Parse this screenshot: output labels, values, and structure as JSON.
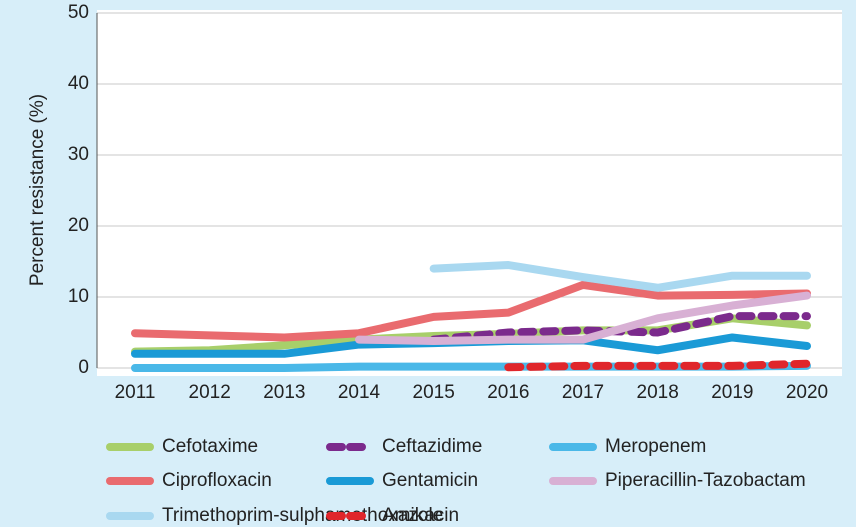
{
  "chart_data": {
    "type": "line",
    "y_label": "Percent resistance (%)",
    "categories": [
      "2011",
      "2012",
      "2013",
      "2014",
      "2015",
      "2016",
      "2017",
      "2018",
      "2019",
      "2020"
    ],
    "ylim": [
      0,
      50
    ],
    "yticks": [
      0,
      10,
      20,
      30,
      40,
      50
    ],
    "grid": true,
    "series": [
      {
        "name": "Cefotaxime",
        "color": "#a8cf6a",
        "dashed": false,
        "values": [
          2.3,
          2.5,
          3.2,
          4,
          4.5,
          4.8,
          5.3,
          5.3,
          7,
          6
        ]
      },
      {
        "name": "Ceftazidime",
        "color": "#7b2a8c",
        "dashed": true,
        "values": [
          null,
          null,
          null,
          null,
          4,
          5,
          5.3,
          5,
          7.3,
          7.3
        ]
      },
      {
        "name": "Meropenem",
        "color": "#4ab8e8",
        "dashed": false,
        "values": [
          0,
          0,
          0,
          0.2,
          0.2,
          0.2,
          0.2,
          0.2,
          0.2,
          0.3
        ]
      },
      {
        "name": "Ciprofloxacin",
        "color": "#e96b6f",
        "dashed": false,
        "values": [
          4.9,
          4.6,
          4.3,
          4.9,
          7.2,
          7.8,
          11.7,
          10.2,
          10.3,
          10.5
        ]
      },
      {
        "name": "Gentamicin",
        "color": "#1a9ad6",
        "dashed": false,
        "values": [
          2,
          2,
          2,
          3.3,
          3.5,
          3.8,
          3.9,
          2.5,
          4.3,
          3.1
        ]
      },
      {
        "name": "Piperacillin-Tazobactam",
        "color": "#d8b0d4",
        "dashed": false,
        "values": [
          null,
          null,
          null,
          4,
          3.8,
          4,
          4,
          7,
          8.8,
          10.2
        ]
      },
      {
        "name": "Trimethoprim-sulphamethoxazole",
        "color": "#a9d8f0",
        "dashed": false,
        "values": [
          null,
          null,
          null,
          null,
          14,
          14.5,
          12.8,
          11.3,
          13,
          13
        ]
      },
      {
        "name": "Amikacin",
        "color": "#e0262b",
        "dashed": true,
        "values": [
          null,
          null,
          null,
          null,
          null,
          0.1,
          0.3,
          0.3,
          0.3,
          0.6
        ]
      }
    ]
  }
}
